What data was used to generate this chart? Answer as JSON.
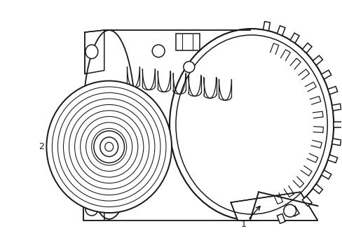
{
  "background_color": "#ffffff",
  "line_color": "#1a1a1a",
  "line_width": 1.1,
  "label1_text": "1",
  "label2_text": "2",
  "figsize": [
    4.89,
    3.6
  ],
  "dpi": 100,
  "xlim": [
    0,
    489
  ],
  "ylim": [
    0,
    360
  ]
}
